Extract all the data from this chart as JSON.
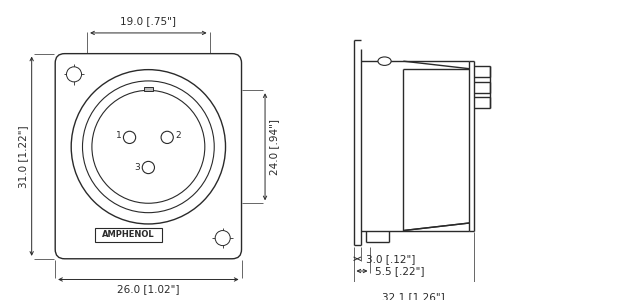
{
  "bg_color": "#ffffff",
  "line_color": "#2a2a2a",
  "dim_color": "#2a2a2a",
  "label": "AMPHENOL",
  "dims_front": {
    "top": "19.0 [.75\"]",
    "left": "31.0 [1.22\"]",
    "bottom": "26.0 [1.02\"]",
    "right": "24.0 [.94\"]"
  },
  "dims_side": {
    "d1": "3.0 [.12\"]",
    "d2": "5.5 [.22\"]",
    "d3": "32.1 [1.26\"]"
  }
}
